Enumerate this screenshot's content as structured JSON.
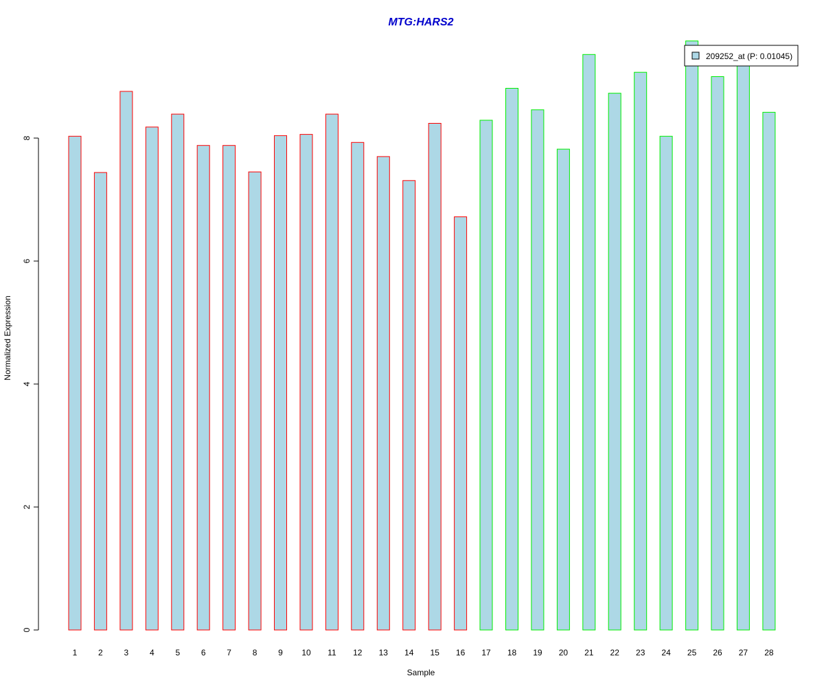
{
  "chart_data": {
    "type": "bar",
    "title": "MTG:HARS2",
    "xlabel": "Sample",
    "ylabel": "Normalized Expression",
    "ylim": [
      0,
      9.6
    ],
    "y_ticks": [
      0,
      2,
      4,
      6,
      8
    ],
    "grid": false,
    "legend_position": "top-right",
    "categories": [
      "1",
      "2",
      "3",
      "4",
      "5",
      "6",
      "7",
      "8",
      "9",
      "10",
      "11",
      "12",
      "13",
      "14",
      "15",
      "16",
      "17",
      "18",
      "19",
      "20",
      "21",
      "22",
      "23",
      "24",
      "25",
      "26",
      "27",
      "28"
    ],
    "series": [
      {
        "name": "209252_at (P: 0.01045)",
        "values": [
          8.03,
          7.44,
          8.76,
          8.18,
          8.39,
          7.88,
          7.88,
          7.45,
          8.04,
          8.06,
          8.39,
          7.93,
          7.7,
          7.31,
          8.24,
          6.72,
          8.29,
          8.81,
          8.46,
          7.82,
          9.36,
          8.73,
          9.07,
          8.03,
          9.58,
          9.0,
          9.4,
          8.42
        ],
        "group": [
          "A",
          "A",
          "A",
          "A",
          "A",
          "A",
          "A",
          "A",
          "A",
          "A",
          "A",
          "A",
          "A",
          "A",
          "A",
          "A",
          "B",
          "B",
          "B",
          "B",
          "B",
          "B",
          "B",
          "B",
          "B",
          "B",
          "B",
          "B"
        ]
      }
    ],
    "colors": {
      "title": "#0000CC",
      "bar_fill": "#ADD8E6",
      "group_a_border": "#FF0000",
      "group_b_border": "#00EE00",
      "axis": "#000000"
    }
  }
}
